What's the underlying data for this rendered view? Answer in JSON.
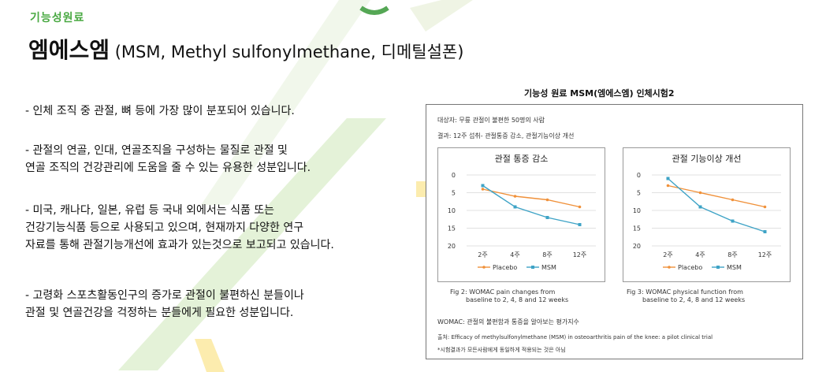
{
  "header": {
    "kicker": "기능성원료",
    "title_bold": "엠에스엠",
    "title_rest": " (MSM, Methyl  sulfonylmethane, 디메틸설폰)"
  },
  "bullets": [
    [
      "-  인체 조직 중 관절, 뼈 등에 가장 많이 분포되어 있습니다."
    ],
    [
      "- 관절의 연골, 인대, 연골조직을 구성하는 물질로 관절 및",
      "  연골 조직의 건강관리에 도움을 줄 수 있는 유용한 성분입니다."
    ],
    [
      "- 미국, 캐나다, 일본, 유럽 등 국내 외에서는 식품 또는",
      "  건강기능식품 등으로 사용되고 있으며, 현재까지 다양한 연구",
      "  자료를 통해 관절기능개선에 효과가 있는것으로 보고되고 있습니다."
    ],
    [
      "- 고령화 스포츠활동인구의 증가로 관절이 불편하신 분들이나",
      "  관절 및 연골건강을 걱정하는 분들에게 필요한 성분입니다."
    ]
  ],
  "figure": {
    "title": "기능성 원료 MSM(엠에스엠) 인체시험2",
    "subject": "대상자: 무릎 관절이 불편한 50명의 사람",
    "result": "결과: 12주 섭취- 관절통증 감소, 관절기능이상 개선",
    "caption_left": [
      "Fig 2: WOMAC pain changes from",
      "baseline to 2, 4, 8 and 12 weeks"
    ],
    "caption_right": [
      "Fig 3: WOMAC physical function from",
      "baseline to 2, 4, 8 and 12 weeks"
    ],
    "womac_note": "WOMAC: 관절의 불편함과 통증을 알아보는 평가지수",
    "source": "출처: Efficacy of methylsulfonylmethane (MSM) in osteoarthritis pain of the knee: a pilot clinical trial",
    "disclaimer": "*시험결과가 모든사람에게 동일하게 적용되는 것은 아님"
  },
  "colors": {
    "placebo": "#f0913a",
    "msm": "#3ea3c6",
    "accent": "#49a942"
  },
  "chart_data": [
    {
      "type": "line",
      "title": "관절 통증 감소",
      "categories": [
        "2주",
        "4주",
        "8주",
        "12주"
      ],
      "y_ticks": [
        "0",
        "5",
        "10",
        "15",
        "20"
      ],
      "ylim": [
        0,
        20
      ],
      "y_inverted": true,
      "legend_position": "bottom",
      "series": [
        {
          "name": "Placebo",
          "values": [
            4,
            6,
            7,
            9
          ]
        },
        {
          "name": "MSM",
          "values": [
            3,
            9,
            12,
            14
          ]
        }
      ]
    },
    {
      "type": "line",
      "title": "관절 기능이상 개선",
      "categories": [
        "2주",
        "4주",
        "8주",
        "12주"
      ],
      "y_ticks": [
        "0",
        "5",
        "10",
        "15",
        "20"
      ],
      "ylim": [
        0,
        20
      ],
      "y_inverted": true,
      "legend_position": "bottom",
      "series": [
        {
          "name": "Placebo",
          "values": [
            3,
            5,
            7,
            9
          ]
        },
        {
          "name": "MSM",
          "values": [
            1,
            9,
            13,
            16
          ]
        }
      ]
    }
  ]
}
